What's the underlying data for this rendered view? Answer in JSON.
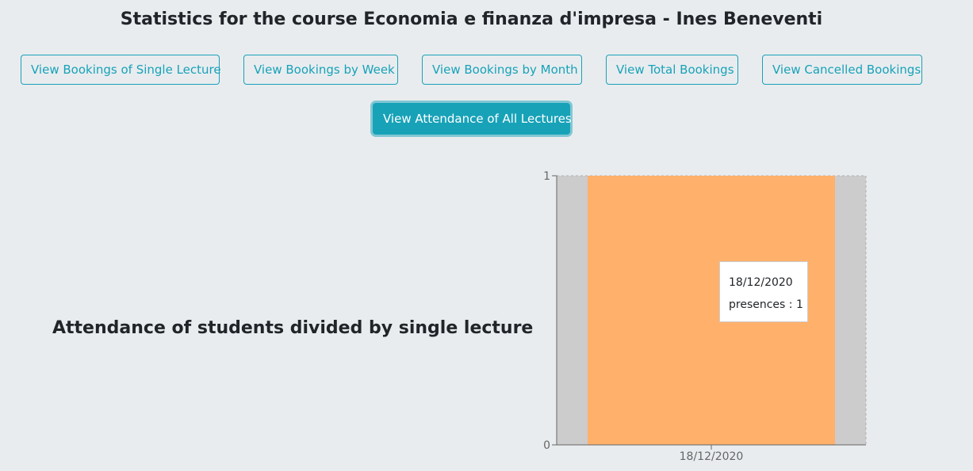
{
  "header": {
    "title": "Statistics for the course Economia e finanza d'impresa - Ines Beneventi"
  },
  "buttons": {
    "single_lecture": "View Bookings of Single Lecture",
    "by_week": "View Bookings by Week",
    "by_month": "View Bookings by Month",
    "total": "View Total Bookings",
    "cancelled": "View Cancelled Bookings",
    "attendance_all": "View Attendance of All Lectures"
  },
  "chart_heading": "Attendance of students divided by single lecture",
  "tooltip": {
    "label": "18/12/2020",
    "value_line": "presences : 1"
  },
  "colors": {
    "accent": "#17a2b8",
    "bar": "#ffb06a",
    "hover_band": "#cccccc",
    "background": "#e9ecef"
  },
  "chart_data": {
    "type": "bar",
    "categories": [
      "18/12/2020"
    ],
    "series": [
      {
        "name": "presences",
        "values": [
          1
        ]
      }
    ],
    "ylim": [
      0,
      1
    ],
    "yticks": [
      0,
      1
    ],
    "xlabel": "",
    "ylabel": "",
    "grid": true,
    "highlighted_category": "18/12/2020"
  }
}
